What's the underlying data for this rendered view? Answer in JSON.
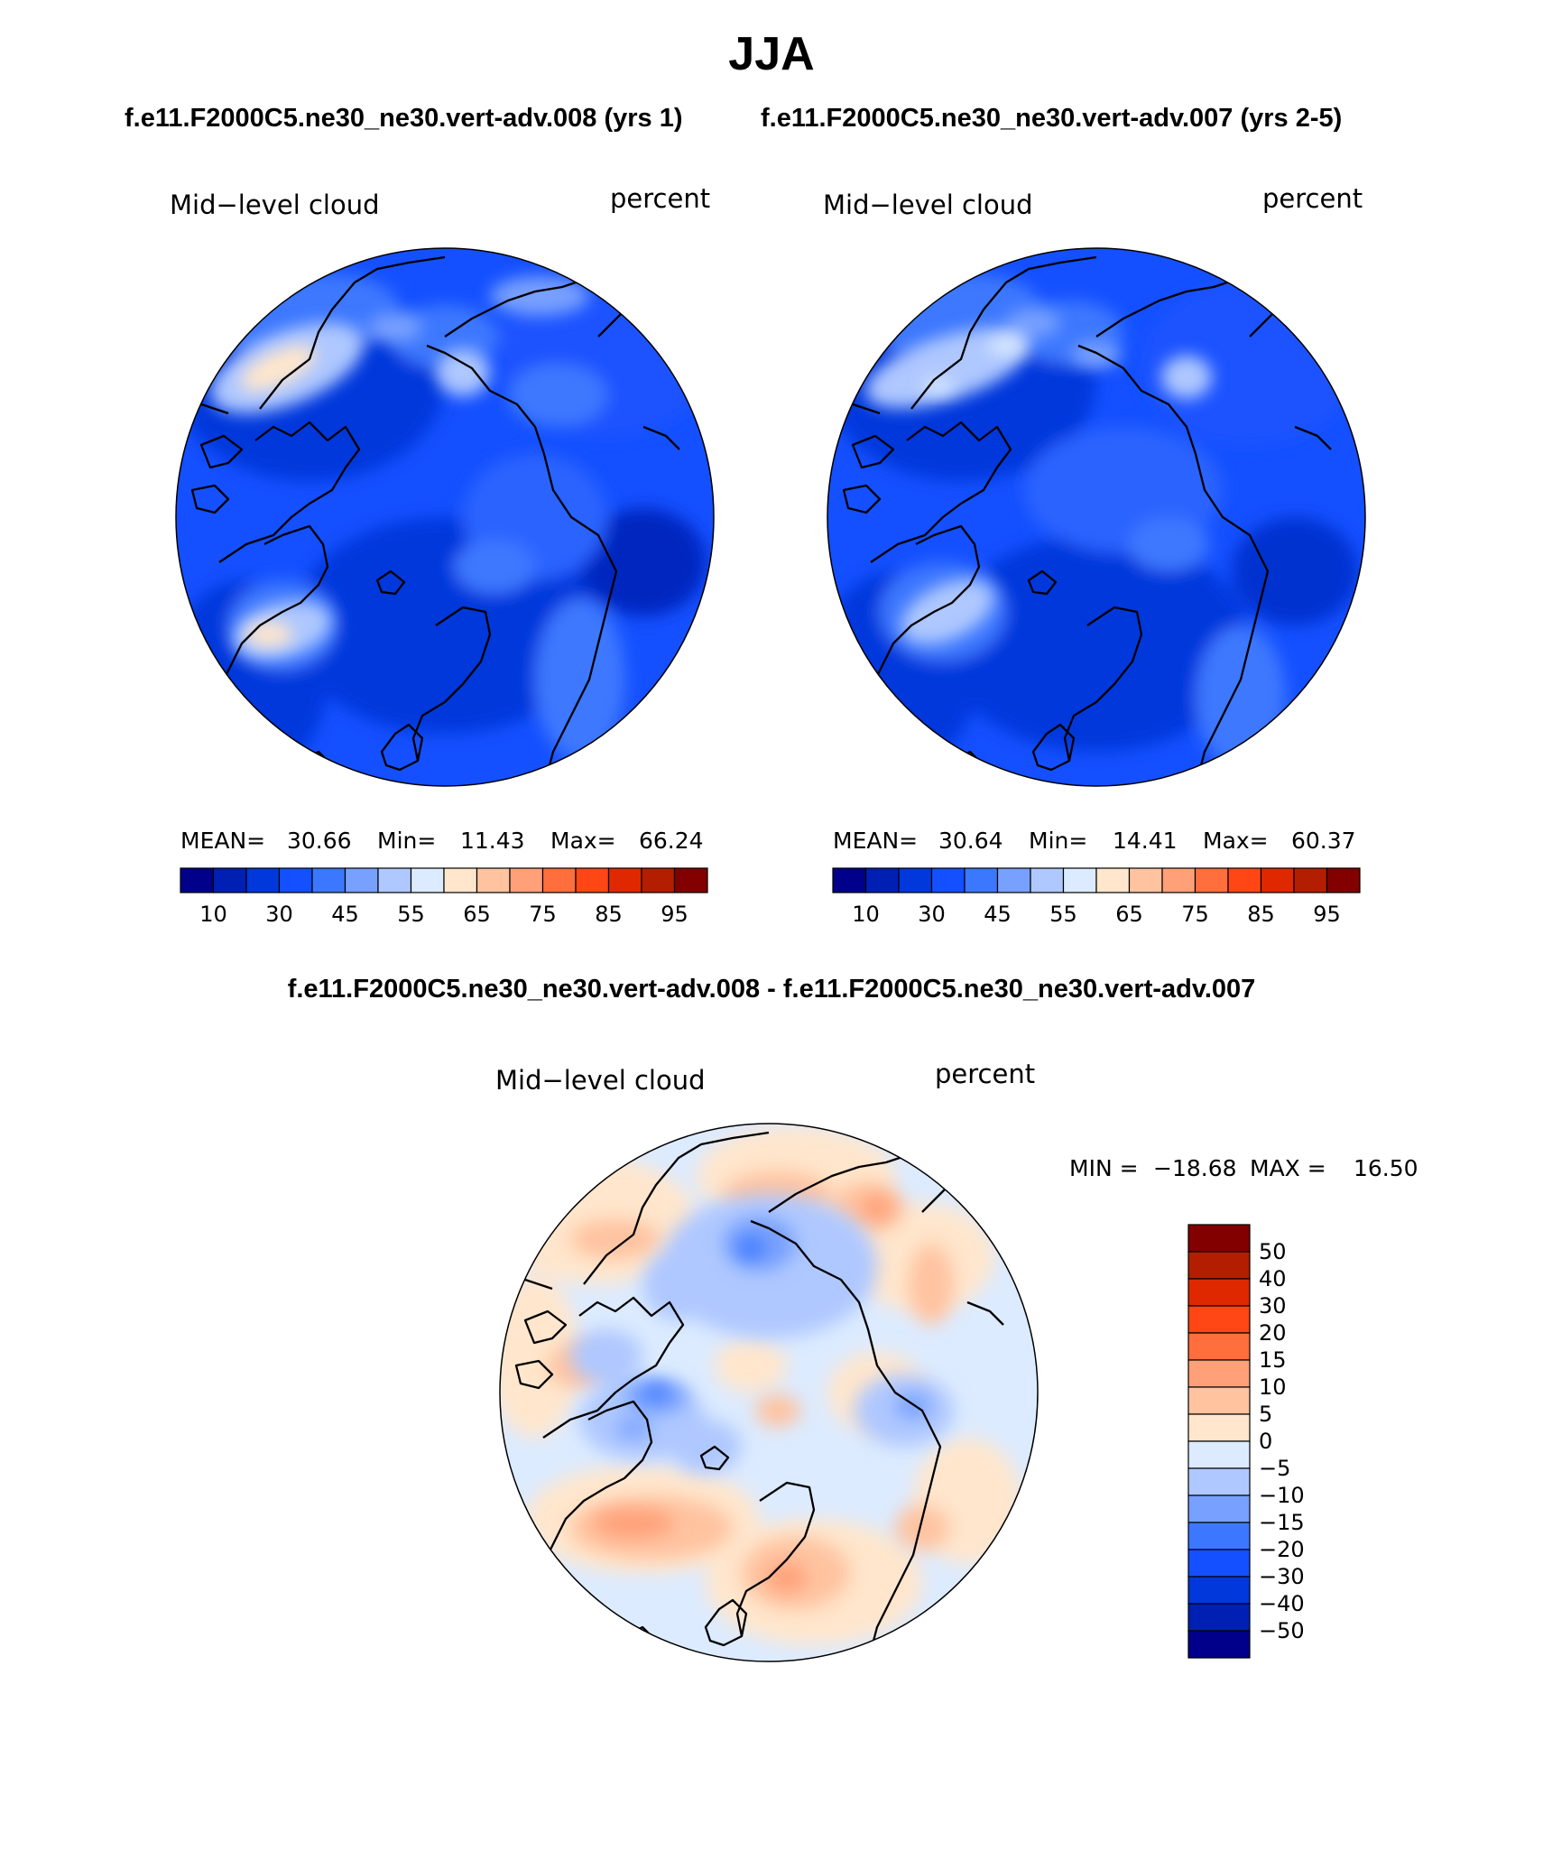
{
  "page": {
    "title": "JJA",
    "case1_label": "f.e11.F2000C5.ne30_ne30.vert-adv.008 (yrs 1)",
    "case2_label": "f.e11.F2000C5.ne30_ne30.vert-adv.007 (yrs 2-5)",
    "diff_title": "f.e11.F2000C5.ne30_ne30.vert-adv.008 - f.e11.F2000C5.ne30_ne30.vert-adv.007"
  },
  "panels": [
    {
      "variable": "Mid−level cloud",
      "units": "percent",
      "mean_label": "MEAN=",
      "mean": "30.66",
      "min_label": "Min=",
      "min": "11.43",
      "max_label": "Max=",
      "max": "66.24"
    },
    {
      "variable": "Mid−level cloud",
      "units": "percent",
      "mean_label": "MEAN=",
      "mean": "30.64",
      "min_label": "Min=",
      "min": "14.41",
      "max_label": "Max=",
      "max": "60.37"
    }
  ],
  "diff_panel": {
    "variable": "Mid−level cloud",
    "units": "percent",
    "min_label": "MIN =",
    "min": "−18.68",
    "max_label": "MAX =",
    "max": "16.50"
  },
  "colorbar_top": {
    "colors": [
      "#00008a",
      "#0020b4",
      "#0038dc",
      "#1450ff",
      "#3c78ff",
      "#78a0ff",
      "#afc8ff",
      "#dcebff",
      "#ffe6cc",
      "#ffc3a0",
      "#ffa078",
      "#ff6e3c",
      "#ff4614",
      "#e02800",
      "#b41e00",
      "#820000"
    ],
    "tick_labels": [
      "10",
      "30",
      "45",
      "55",
      "65",
      "75",
      "85",
      "95"
    ]
  },
  "colorbar_diff": {
    "colors": [
      "#00008a",
      "#0020b4",
      "#0038dc",
      "#1450ff",
      "#3c78ff",
      "#78a0ff",
      "#afc8ff",
      "#dcebff",
      "#ffe6cc",
      "#ffc3a0",
      "#ffa078",
      "#ff6e3c",
      "#ff4614",
      "#e02800",
      "#b41e00",
      "#820000"
    ],
    "tick_labels": [
      "50",
      "40",
      "30",
      "20",
      "15",
      "10",
      "5",
      "0",
      "−5",
      "−10",
      "−15",
      "−20",
      "−30",
      "−40",
      "−50"
    ]
  }
}
